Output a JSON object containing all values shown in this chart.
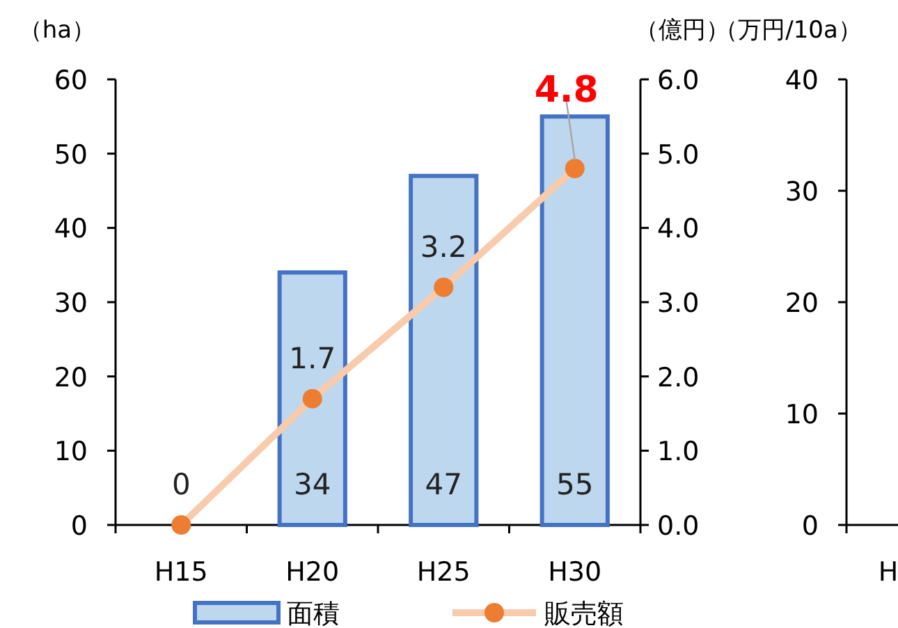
{
  "chart_data": [
    {
      "type": "bar",
      "categories": [
        "H15",
        "H20",
        "H25",
        "H30"
      ],
      "ylabel": "（ha）",
      "y2label": "（億円）",
      "ylim": [
        0,
        60
      ],
      "yticks": [
        0,
        10,
        20,
        30,
        40,
        50,
        60
      ],
      "y2lim": [
        0,
        6
      ],
      "y2ticks": [
        {
          "value": 0,
          "label": "0.0"
        },
        {
          "value": 1,
          "label": "1.0"
        },
        {
          "value": 2,
          "label": "2.0"
        },
        {
          "value": 3,
          "label": "3.0"
        },
        {
          "value": 4,
          "label": "4.0"
        },
        {
          "value": 5,
          "label": "5.0"
        },
        {
          "value": 6,
          "label": "6.0"
        }
      ],
      "legend": "bottom",
      "marker": "circle",
      "series": [
        {
          "name": "面積",
          "color": "#bdd7ee",
          "values": [
            0,
            34,
            47,
            55
          ],
          "value_labels": [
            null,
            "34",
            "47",
            "55"
          ]
        },
        {
          "name": "販売額",
          "type": "line",
          "axis": "y2",
          "color": "#f8cbad",
          "colors": [
            "#ed7d31",
            "#ed7d31",
            "#ed7d31",
            "#ed7d31"
          ],
          "values": [
            0,
            1.7,
            3.2,
            4.8
          ],
          "value_labels": [
            "0",
            "1.7",
            "3.2",
            "4.8"
          ]
        }
      ]
    },
    {
      "type": "bar",
      "categories": [
        "H"
      ],
      "ylabel": "（万円/10a）",
      "ylim": [
        0,
        40
      ],
      "yticks": [
        0,
        10,
        20,
        30,
        40
      ],
      "values": [
        null
      ]
    }
  ]
}
